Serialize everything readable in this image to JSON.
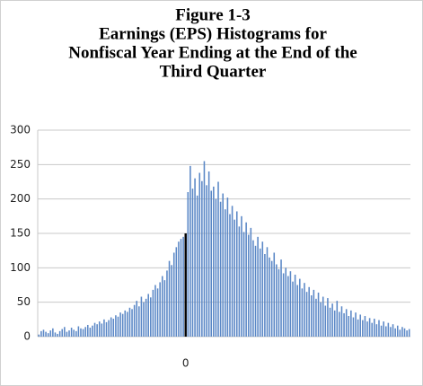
{
  "chart_data": {
    "type": "bar",
    "title": [
      "Figure 1-3",
      "Earnings (EPS) Histograms for",
      "Nonfiscal Year Ending at the End of the",
      "Third Quarter"
    ],
    "categories": [
      null,
      null,
      null,
      null,
      null,
      null,
      null,
      null,
      null,
      null,
      null,
      null,
      null,
      null,
      null,
      null,
      null,
      null,
      null,
      null,
      null,
      null,
      null,
      null,
      null,
      null,
      null,
      null,
      null,
      null,
      null,
      null,
      null,
      null,
      null,
      null,
      null,
      null,
      null,
      null,
      null,
      null,
      null,
      null,
      null,
      null,
      null,
      null,
      null,
      null,
      null,
      null,
      null,
      null,
      null,
      null,
      null,
      null,
      null,
      null,
      null,
      null,
      null,
      "0",
      null,
      null,
      null,
      null,
      null,
      null,
      null,
      null,
      null,
      null,
      null,
      null,
      null,
      null,
      null,
      null,
      null,
      null,
      null,
      null,
      null,
      null,
      null,
      null,
      null,
      null,
      null,
      null,
      null,
      null,
      null,
      null,
      null,
      null,
      null,
      null,
      null,
      null,
      null,
      null,
      null,
      null,
      null,
      null,
      null,
      null,
      null,
      null,
      null,
      null,
      null,
      null,
      null,
      null,
      null,
      null,
      null,
      null,
      null,
      null,
      null,
      null,
      null,
      null,
      null,
      null,
      null,
      null,
      null,
      null,
      null,
      null,
      null,
      null,
      null,
      null,
      null,
      null,
      null,
      null,
      null,
      null,
      null,
      null,
      null,
      null,
      null,
      null,
      null,
      null,
      null,
      null,
      null,
      null,
      null,
      null
    ],
    "values": [
      3,
      8,
      10,
      7,
      5,
      9,
      12,
      6,
      4,
      8,
      11,
      14,
      7,
      9,
      13,
      10,
      8,
      15,
      12,
      11,
      14,
      17,
      13,
      16,
      20,
      18,
      22,
      19,
      25,
      21,
      24,
      28,
      26,
      31,
      29,
      35,
      33,
      38,
      36,
      42,
      40,
      46,
      52,
      44,
      58,
      50,
      55,
      62,
      57,
      68,
      75,
      70,
      79,
      88,
      82,
      96,
      110,
      104,
      122,
      130,
      138,
      142,
      145,
      150,
      210,
      248,
      215,
      230,
      205,
      238,
      226,
      255,
      220,
      240,
      212,
      218,
      200,
      225,
      196,
      208,
      185,
      202,
      178,
      190,
      170,
      182,
      160,
      175,
      152,
      166,
      148,
      158,
      140,
      132,
      145,
      128,
      138,
      120,
      130,
      115,
      110,
      122,
      105,
      98,
      112,
      92,
      100,
      88,
      95,
      80,
      90,
      75,
      84,
      70,
      78,
      65,
      72,
      60,
      68,
      55,
      64,
      50,
      58,
      45,
      56,
      42,
      48,
      38,
      52,
      36,
      44,
      34,
      40,
      30,
      38,
      28,
      35,
      25,
      32,
      24,
      30,
      22,
      27,
      20,
      26,
      18,
      24,
      16,
      22,
      15,
      20,
      14,
      18,
      12,
      16,
      10,
      14,
      12,
      9,
      11
    ],
    "color": "#5a87c6",
    "highlight_color": "#000000",
    "ylim": [
      0,
      300
    ],
    "yticks": [
      0,
      50,
      100,
      150,
      200,
      250,
      300
    ],
    "grid": true
  }
}
